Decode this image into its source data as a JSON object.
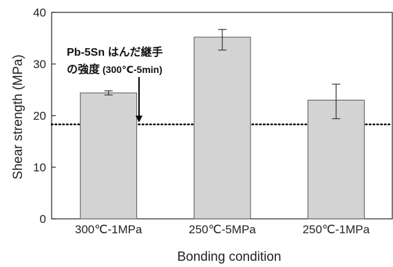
{
  "chart_data": {
    "type": "bar",
    "categories": [
      "300℃-1MPa",
      "250℃-5MPa",
      "250℃-1MPa"
    ],
    "values": [
      24.4,
      35.2,
      23.0
    ],
    "error_low": [
      24.0,
      32.7,
      19.4
    ],
    "error_high": [
      24.8,
      36.7,
      26.1
    ],
    "xlabel": "Bonding condition",
    "ylabel": "Shear strength (MPa)",
    "ylim": [
      0,
      40
    ],
    "yticks": [
      0,
      10,
      20,
      30,
      40
    ],
    "reference_line": {
      "value": 18.3,
      "style": "dotted"
    },
    "annotation": {
      "line1_bold": "Pb-5Sn",
      "line1_rest": " はんだ継手",
      "line2_main": "の強度",
      "line2_sub": " (300℃-5min)"
    },
    "grid": false,
    "bar_color": "#d3d3d3",
    "bar_edge_color": "#555555"
  }
}
